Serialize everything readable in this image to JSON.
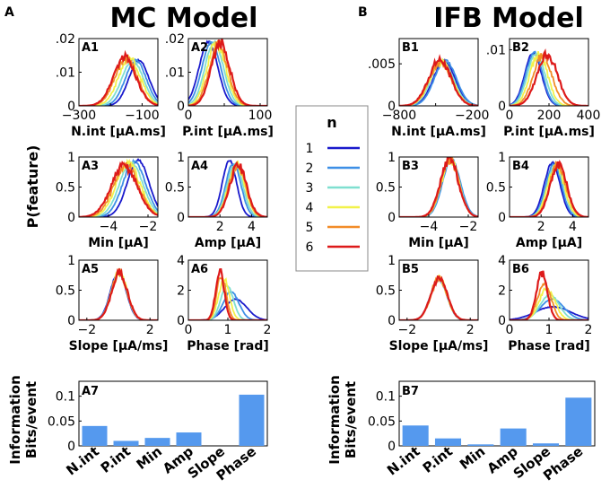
{
  "figure": {
    "panel_letters": [
      "A",
      "B"
    ],
    "titles": [
      "MC Model",
      "IFB Model"
    ],
    "ylabel": "P(feature)",
    "info_label_line1": "Information",
    "info_label_line2": "Bits/event"
  },
  "legend": {
    "title": "n",
    "entries": [
      "1",
      "2",
      "3",
      "4",
      "5",
      "6"
    ],
    "colors": [
      "#1a1acc",
      "#3d8fe6",
      "#7fdfd0",
      "#f2f24a",
      "#f28c28",
      "#dd1a1a"
    ]
  },
  "chart_data": [
    {
      "id": "A1",
      "type": "line",
      "label": "A1",
      "xlabel": "N.int [μA.ms]",
      "xlim": [
        -300,
        -50
      ],
      "ylim": [
        0,
        0.02
      ],
      "xticks": [
        -300,
        -200,
        -100
      ],
      "xtick_labels": [
        "−300",
        "",
        "−100"
      ],
      "yticks": [
        0,
        0.01,
        0.02
      ],
      "ytick_labels": [
        "0",
        ".01",
        ".02"
      ],
      "series": [
        {
          "name": "1",
          "mean": -110,
          "sd": 32,
          "peak": 0.0135
        },
        {
          "name": "2",
          "mean": -120,
          "sd": 33,
          "peak": 0.0135
        },
        {
          "name": "3",
          "mean": -130,
          "sd": 34,
          "peak": 0.0135
        },
        {
          "name": "4",
          "mean": -140,
          "sd": 35,
          "peak": 0.014
        },
        {
          "name": "5",
          "mean": -150,
          "sd": 36,
          "peak": 0.014
        },
        {
          "name": "6",
          "mean": -155,
          "sd": 36,
          "peak": 0.0145
        }
      ]
    },
    {
      "id": "A2",
      "type": "line",
      "label": "A2",
      "xlabel": "P.int [μA.ms]",
      "xlim": [
        0,
        110
      ],
      "ylim": [
        0,
        0.02
      ],
      "xticks": [
        0,
        50,
        100
      ],
      "xtick_labels": [
        "0",
        "",
        "100"
      ],
      "yticks": [
        0,
        0.01,
        0.02
      ],
      "ytick_labels": [
        "0",
        ".01",
        ".02"
      ],
      "series": [
        {
          "name": "1",
          "mean": 28,
          "sd": 13,
          "peak": 0.019
        },
        {
          "name": "2",
          "mean": 32,
          "sd": 13,
          "peak": 0.019
        },
        {
          "name": "3",
          "mean": 36,
          "sd": 13,
          "peak": 0.0188
        },
        {
          "name": "4",
          "mean": 39,
          "sd": 13,
          "peak": 0.0186
        },
        {
          "name": "5",
          "mean": 42,
          "sd": 13,
          "peak": 0.0184
        },
        {
          "name": "6",
          "mean": 45,
          "sd": 13,
          "peak": 0.0185
        }
      ]
    },
    {
      "id": "A3",
      "type": "line",
      "label": "A3",
      "xlabel": "Min [μA]",
      "xlim": [
        -5.5,
        -1.5
      ],
      "ylim": [
        0,
        1
      ],
      "xticks": [
        -4,
        -2
      ],
      "xtick_labels": [
        "−4",
        "−2"
      ],
      "yticks": [
        0,
        0.5,
        1
      ],
      "ytick_labels": [
        "0",
        "0.5",
        "1"
      ],
      "series": [
        {
          "name": "1",
          "mean": -2.5,
          "sd": 0.55,
          "peak": 0.95
        },
        {
          "name": "2",
          "mean": -2.7,
          "sd": 0.58,
          "peak": 0.92
        },
        {
          "name": "3",
          "mean": -2.85,
          "sd": 0.6,
          "peak": 0.9
        },
        {
          "name": "4",
          "mean": -3.0,
          "sd": 0.62,
          "peak": 0.88
        },
        {
          "name": "5",
          "mean": -3.1,
          "sd": 0.64,
          "peak": 0.86
        },
        {
          "name": "6",
          "mean": -3.2,
          "sd": 0.66,
          "peak": 0.85
        }
      ]
    },
    {
      "id": "A4",
      "type": "line",
      "label": "A4",
      "xlabel": "Amp [μA]",
      "xlim": [
        0,
        5
      ],
      "ylim": [
        0,
        1
      ],
      "xticks": [
        2,
        4
      ],
      "xtick_labels": [
        "2",
        "4"
      ],
      "yticks": [
        0,
        0.5,
        1
      ],
      "ytick_labels": [
        "0",
        "0.5",
        "1"
      ],
      "series": [
        {
          "name": "1",
          "mean": 2.6,
          "sd": 0.45,
          "peak": 0.95
        },
        {
          "name": "2",
          "mean": 2.85,
          "sd": 0.48,
          "peak": 0.9
        },
        {
          "name": "3",
          "mean": 2.95,
          "sd": 0.5,
          "peak": 0.88
        },
        {
          "name": "4",
          "mean": 3.05,
          "sd": 0.52,
          "peak": 0.86
        },
        {
          "name": "5",
          "mean": 3.1,
          "sd": 0.53,
          "peak": 0.85
        },
        {
          "name": "6",
          "mean": 3.15,
          "sd": 0.54,
          "peak": 0.86
        }
      ]
    },
    {
      "id": "A5",
      "type": "line",
      "label": "A5",
      "xlabel": "Slope [μA/ms]",
      "xlim": [
        -2.5,
        2.5
      ],
      "ylim": [
        0,
        1
      ],
      "xticks": [
        -2,
        2
      ],
      "xtick_labels": [
        "−2",
        "2"
      ],
      "yticks": [
        0,
        0.5,
        1
      ],
      "ytick_labels": [
        "0",
        "0.5",
        "1"
      ],
      "series": [
        {
          "name": "1",
          "mean": 0.0,
          "sd": 0.5,
          "peak": 0.8
        },
        {
          "name": "2",
          "mean": 0.02,
          "sd": 0.5,
          "peak": 0.79
        },
        {
          "name": "3",
          "mean": 0.04,
          "sd": 0.5,
          "peak": 0.78
        },
        {
          "name": "4",
          "mean": 0.05,
          "sd": 0.5,
          "peak": 0.78
        },
        {
          "name": "5",
          "mean": 0.06,
          "sd": 0.5,
          "peak": 0.78
        },
        {
          "name": "6",
          "mean": 0.07,
          "sd": 0.5,
          "peak": 0.79
        }
      ]
    },
    {
      "id": "A6",
      "type": "line",
      "label": "A6",
      "xlabel": "Phase [rad]",
      "xlim": [
        0,
        2
      ],
      "ylim": [
        0,
        4
      ],
      "xticks": [
        0,
        1,
        2
      ],
      "xtick_labels": [
        "0",
        "1",
        "2"
      ],
      "yticks": [
        0,
        2,
        4
      ],
      "ytick_labels": [
        "0",
        "2",
        "4"
      ],
      "series": [
        {
          "name": "1",
          "mean": 1.2,
          "sd": 0.28,
          "peak": 1.4
        },
        {
          "name": "2",
          "mean": 1.08,
          "sd": 0.2,
          "peak": 1.9
        },
        {
          "name": "3",
          "mean": 0.98,
          "sd": 0.16,
          "peak": 2.3
        },
        {
          "name": "4",
          "mean": 0.9,
          "sd": 0.14,
          "peak": 2.7
        },
        {
          "name": "5",
          "mean": 0.84,
          "sd": 0.12,
          "peak": 3.0
        },
        {
          "name": "6",
          "mean": 0.8,
          "sd": 0.11,
          "peak": 3.2
        }
      ]
    },
    {
      "id": "A7",
      "type": "bar",
      "label": "A7",
      "categories": [
        "N.int",
        "P.int",
        "Min",
        "Amp",
        "Slope",
        "Phase"
      ],
      "values": [
        0.04,
        0.01,
        0.016,
        0.027,
        0.0,
        0.103
      ],
      "ylim": [
        0,
        0.13
      ],
      "yticks": [
        0,
        0.05,
        0.1
      ],
      "ytick_labels": [
        "0",
        "0.05",
        "0.1"
      ],
      "color": "#5599ee"
    },
    {
      "id": "B1",
      "type": "line",
      "label": "B1",
      "xlabel": "N.int [μA.ms]",
      "xlim": [
        -800,
        -150
      ],
      "ylim": [
        0,
        0.008
      ],
      "xticks": [
        -800,
        -500,
        -200
      ],
      "xtick_labels": [
        "−800",
        "",
        "−200"
      ],
      "yticks": [
        0,
        0.005
      ],
      "ytick_labels": [
        "0",
        ".005"
      ],
      "series": [
        {
          "name": "1",
          "mean": -430,
          "sd": 90,
          "peak": 0.0053
        },
        {
          "name": "2",
          "mean": -420,
          "sd": 90,
          "peak": 0.0054
        },
        {
          "name": "3",
          "mean": -445,
          "sd": 92,
          "peak": 0.0053
        },
        {
          "name": "4",
          "mean": -455,
          "sd": 92,
          "peak": 0.0052
        },
        {
          "name": "5",
          "mean": -460,
          "sd": 92,
          "peak": 0.0052
        },
        {
          "name": "6",
          "mean": -465,
          "sd": 93,
          "peak": 0.0054
        }
      ]
    },
    {
      "id": "B2",
      "type": "line",
      "label": "B2",
      "xlabel": "P.int [μA.ms]",
      "xlim": [
        0,
        400
      ],
      "ylim": [
        0,
        0.012
      ],
      "xticks": [
        0,
        200,
        400
      ],
      "xtick_labels": [
        "0",
        "200",
        "400"
      ],
      "yticks": [
        0,
        0.01
      ],
      "ytick_labels": [
        "0",
        ".01"
      ],
      "series": [
        {
          "name": "1",
          "mean": 120,
          "sd": 42,
          "peak": 0.0095
        },
        {
          "name": "2",
          "mean": 125,
          "sd": 42,
          "peak": 0.0095
        },
        {
          "name": "3",
          "mean": 135,
          "sd": 44,
          "peak": 0.0094
        },
        {
          "name": "4",
          "mean": 148,
          "sd": 45,
          "peak": 0.0092
        },
        {
          "name": "5",
          "mean": 168,
          "sd": 48,
          "peak": 0.009
        },
        {
          "name": "6",
          "mean": 190,
          "sd": 52,
          "peak": 0.0092
        }
      ]
    },
    {
      "id": "B3",
      "type": "line",
      "label": "B3",
      "xlabel": "Min [μA]",
      "xlim": [
        -5.5,
        -1.5
      ],
      "ylim": [
        0,
        1
      ],
      "xticks": [
        -4,
        -2
      ],
      "xtick_labels": [
        "−4",
        "−2"
      ],
      "yticks": [
        0,
        0.5,
        1
      ],
      "ytick_labels": [
        "0",
        "0.5",
        "1"
      ],
      "series": [
        {
          "name": "1",
          "mean": -2.9,
          "sd": 0.45,
          "peak": 0.95
        },
        {
          "name": "2",
          "mean": -2.85,
          "sd": 0.45,
          "peak": 0.96
        },
        {
          "name": "3",
          "mean": -2.9,
          "sd": 0.45,
          "peak": 0.95
        },
        {
          "name": "4",
          "mean": -2.92,
          "sd": 0.45,
          "peak": 0.95
        },
        {
          "name": "5",
          "mean": -2.93,
          "sd": 0.45,
          "peak": 0.95
        },
        {
          "name": "6",
          "mean": -2.95,
          "sd": 0.46,
          "peak": 0.96
        }
      ]
    },
    {
      "id": "B4",
      "type": "line",
      "label": "B4",
      "xlabel": "Amp [μA]",
      "xlim": [
        0,
        5
      ],
      "ylim": [
        0,
        1
      ],
      "xticks": [
        2,
        4
      ],
      "xtick_labels": [
        "2",
        "4"
      ],
      "yticks": [
        0,
        0.5,
        1
      ],
      "ytick_labels": [
        "0",
        "0.5",
        "1"
      ],
      "series": [
        {
          "name": "1",
          "mean": 2.7,
          "sd": 0.5,
          "peak": 0.9
        },
        {
          "name": "2",
          "mean": 2.8,
          "sd": 0.5,
          "peak": 0.88
        },
        {
          "name": "3",
          "mean": 2.9,
          "sd": 0.52,
          "peak": 0.87
        },
        {
          "name": "4",
          "mean": 2.95,
          "sd": 0.52,
          "peak": 0.86
        },
        {
          "name": "5",
          "mean": 3.05,
          "sd": 0.53,
          "peak": 0.86
        },
        {
          "name": "6",
          "mean": 3.1,
          "sd": 0.53,
          "peak": 0.88
        }
      ]
    },
    {
      "id": "B5",
      "type": "line",
      "label": "B5",
      "xlabel": "Slope [μA/ms]",
      "xlim": [
        -2.5,
        2.5
      ],
      "ylim": [
        0,
        1
      ],
      "xticks": [
        -2,
        2
      ],
      "xtick_labels": [
        "−2",
        "2"
      ],
      "yticks": [
        0,
        0.5,
        1
      ],
      "ytick_labels": [
        "0",
        "0.5",
        "1"
      ],
      "series": [
        {
          "name": "1",
          "mean": 0.0,
          "sd": 0.52,
          "peak": 0.68
        },
        {
          "name": "2",
          "mean": 0.0,
          "sd": 0.52,
          "peak": 0.68
        },
        {
          "name": "3",
          "mean": 0.01,
          "sd": 0.52,
          "peak": 0.68
        },
        {
          "name": "4",
          "mean": 0.02,
          "sd": 0.52,
          "peak": 0.68
        },
        {
          "name": "5",
          "mean": 0.02,
          "sd": 0.52,
          "peak": 0.69
        },
        {
          "name": "6",
          "mean": 0.03,
          "sd": 0.52,
          "peak": 0.7
        }
      ]
    },
    {
      "id": "B6",
      "type": "line",
      "label": "B6",
      "xlabel": "Phase [rad]",
      "xlim": [
        0,
        2
      ],
      "ylim": [
        0,
        4
      ],
      "xticks": [
        0,
        1,
        2
      ],
      "xtick_labels": [
        "0",
        "1",
        "2"
      ],
      "yticks": [
        0,
        2,
        4
      ],
      "ytick_labels": [
        "0",
        "2",
        "4"
      ],
      "series": [
        {
          "name": "1",
          "mean": 1.1,
          "sd": 0.45,
          "peak": 0.9
        },
        {
          "name": "2",
          "mean": 1.08,
          "sd": 0.3,
          "peak": 1.4
        },
        {
          "name": "3",
          "mean": 1.02,
          "sd": 0.24,
          "peak": 1.7
        },
        {
          "name": "4",
          "mean": 0.95,
          "sd": 0.2,
          "peak": 2.1
        },
        {
          "name": "5",
          "mean": 0.88,
          "sd": 0.17,
          "peak": 2.5
        },
        {
          "name": "6",
          "mean": 0.82,
          "sd": 0.14,
          "peak": 3.1
        }
      ]
    },
    {
      "id": "B7",
      "type": "bar",
      "label": "B7",
      "categories": [
        "N.int",
        "P.int",
        "Min",
        "Amp",
        "Slope",
        "Phase"
      ],
      "values": [
        0.041,
        0.015,
        0.003,
        0.035,
        0.005,
        0.097
      ],
      "ylim": [
        0,
        0.13
      ],
      "yticks": [
        0,
        0.05,
        0.1
      ],
      "ytick_labels": [
        "0",
        "0.05",
        "0.1"
      ],
      "color": "#5599ee"
    }
  ]
}
